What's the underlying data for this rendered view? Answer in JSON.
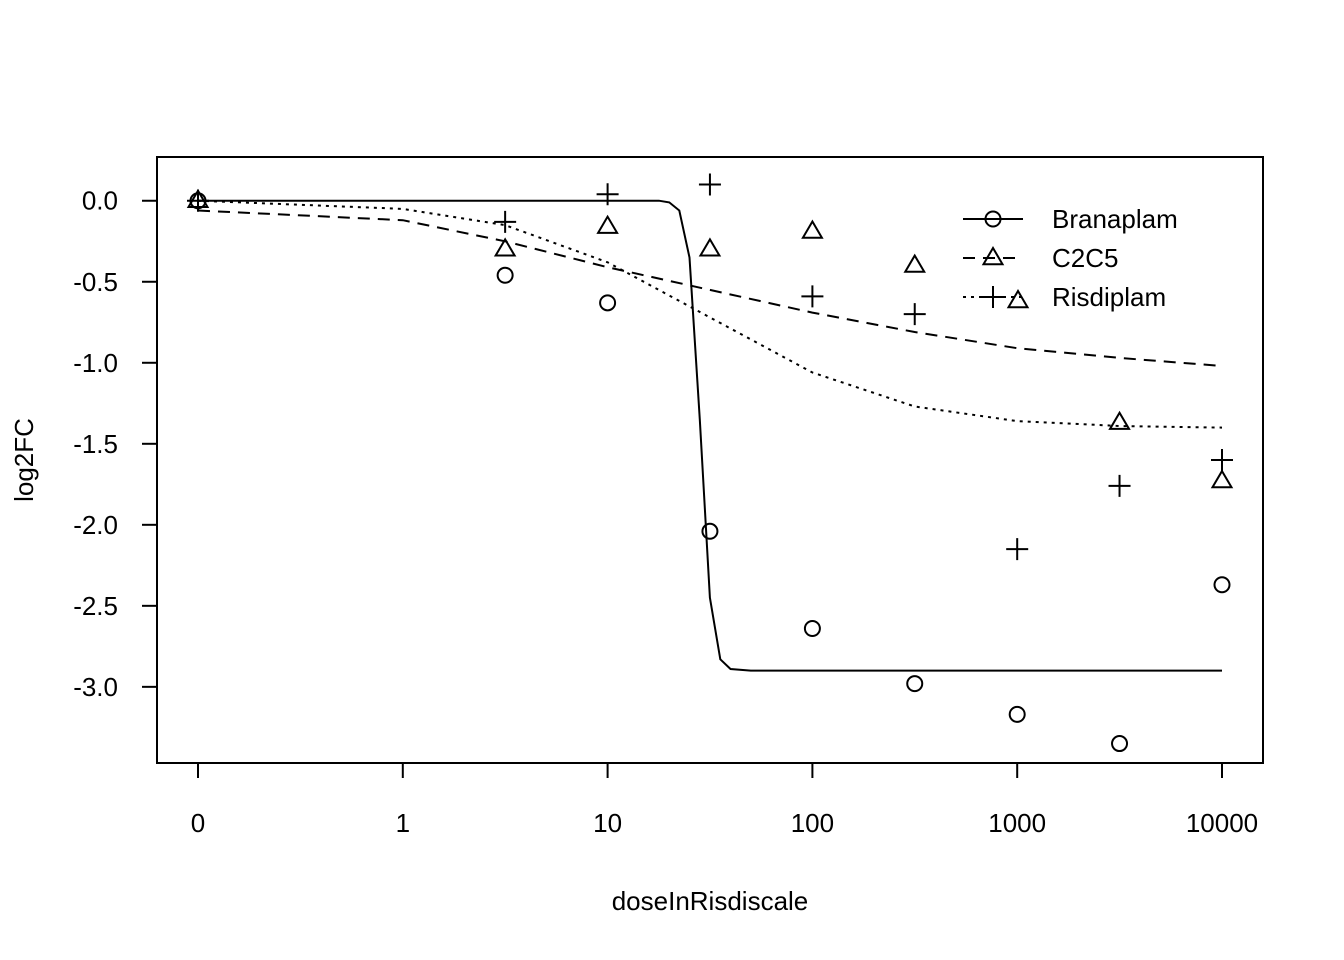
{
  "chart_data": {
    "type": "scatter",
    "title": "",
    "xlabel": "doseInRisdiscale",
    "ylabel": "log2FC",
    "x_scale": "log10 (0 plotted at the leftmost tick)",
    "x_ticks": [
      {
        "label": "0",
        "value": 0
      },
      {
        "label": "1",
        "value": 1
      },
      {
        "label": "10",
        "value": 10
      },
      {
        "label": "100",
        "value": 100
      },
      {
        "label": "1000",
        "value": 1000
      },
      {
        "label": "10000",
        "value": 10000
      }
    ],
    "y_ticks": [
      "0.0",
      "-0.5",
      "-1.0",
      "-1.5",
      "-2.0",
      "-2.5",
      "-3.0"
    ],
    "y_tick_values": [
      0,
      -0.5,
      -1.0,
      -1.5,
      -2.0,
      -2.5,
      -3.0
    ],
    "ylim": [
      -3.47,
      0.27
    ],
    "grid": false,
    "legend_position": "top-right",
    "series": [
      {
        "name": "Branaplam",
        "marker": "circle",
        "line_style": "solid",
        "points": [
          {
            "x": 0,
            "y": 0.0
          },
          {
            "x": 3.16,
            "y": -0.46
          },
          {
            "x": 10,
            "y": -0.63
          },
          {
            "x": 31.6,
            "y": -2.04
          },
          {
            "x": 100,
            "y": -2.64
          },
          {
            "x": 316,
            "y": -2.98
          },
          {
            "x": 1000,
            "y": -3.17
          },
          {
            "x": 3160,
            "y": -3.35
          },
          {
            "x": 10000,
            "y": -2.37
          }
        ],
        "fit": [
          {
            "x": 0,
            "y": 0.0
          },
          {
            "x": 17.8,
            "y": 0.0
          },
          {
            "x": 20,
            "y": -0.01
          },
          {
            "x": 22.4,
            "y": -0.06
          },
          {
            "x": 25.1,
            "y": -0.35
          },
          {
            "x": 28.2,
            "y": -1.35
          },
          {
            "x": 31.6,
            "y": -2.45
          },
          {
            "x": 35.5,
            "y": -2.83
          },
          {
            "x": 39.8,
            "y": -2.89
          },
          {
            "x": 50,
            "y": -2.9
          },
          {
            "x": 10000,
            "y": -2.9
          }
        ]
      },
      {
        "name": "C2C5",
        "marker": "triangle",
        "line_style": "dashed",
        "points": [
          {
            "x": 0,
            "y": 0.0
          },
          {
            "x": 3.16,
            "y": -0.3
          },
          {
            "x": 10,
            "y": -0.16
          },
          {
            "x": 31.6,
            "y": -0.3
          },
          {
            "x": 100,
            "y": -0.19
          },
          {
            "x": 316,
            "y": -0.4
          },
          {
            "x": 3160,
            "y": -1.37
          },
          {
            "x": 10000,
            "y": -1.73
          }
        ],
        "fit": [
          {
            "x": 0,
            "y": -0.06
          },
          {
            "x": 1,
            "y": -0.12
          },
          {
            "x": 3.16,
            "y": -0.25
          },
          {
            "x": 10,
            "y": -0.41
          },
          {
            "x": 31.6,
            "y": -0.55
          },
          {
            "x": 100,
            "y": -0.69
          },
          {
            "x": 316,
            "y": -0.81
          },
          {
            "x": 1000,
            "y": -0.91
          },
          {
            "x": 3160,
            "y": -0.97
          },
          {
            "x": 10000,
            "y": -1.02
          }
        ]
      },
      {
        "name": "Risdiplam",
        "marker": "plus",
        "legend_marker_extra": "triangle",
        "line_style": "dotted",
        "points": [
          {
            "x": 0,
            "y": 0.0
          },
          {
            "x": 3.16,
            "y": -0.13
          },
          {
            "x": 10,
            "y": 0.04
          },
          {
            "x": 31.6,
            "y": 0.1
          },
          {
            "x": 100,
            "y": -0.59
          },
          {
            "x": 316,
            "y": -0.7
          },
          {
            "x": 1000,
            "y": -2.15
          },
          {
            "x": 3160,
            "y": -1.76
          },
          {
            "x": 10000,
            "y": -1.6
          }
        ],
        "fit": [
          {
            "x": 0,
            "y": 0.0
          },
          {
            "x": 1,
            "y": -0.05
          },
          {
            "x": 3.16,
            "y": -0.15
          },
          {
            "x": 10,
            "y": -0.38
          },
          {
            "x": 31.6,
            "y": -0.72
          },
          {
            "x": 100,
            "y": -1.06
          },
          {
            "x": 316,
            "y": -1.27
          },
          {
            "x": 1000,
            "y": -1.36
          },
          {
            "x": 3160,
            "y": -1.39
          },
          {
            "x": 10000,
            "y": -1.4
          }
        ]
      }
    ]
  }
}
